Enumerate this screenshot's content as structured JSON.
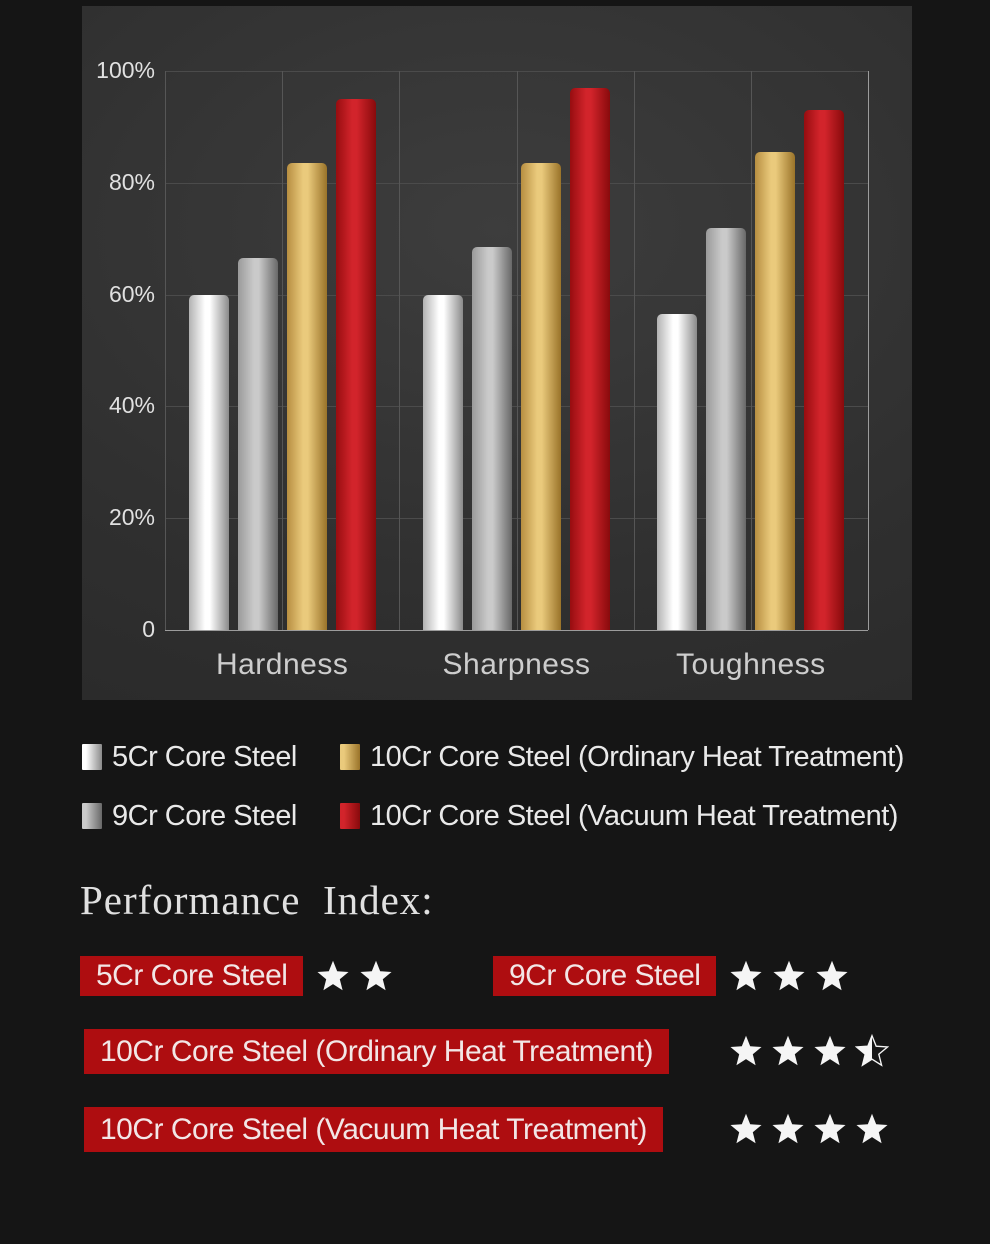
{
  "chart_data": {
    "type": "bar",
    "title": "",
    "xlabel": "",
    "ylabel": "",
    "categories": [
      "Hardness",
      "Sharpness",
      "Toughness"
    ],
    "series": [
      {
        "name": "5Cr Core Steel",
        "values": [
          60,
          60,
          56.5
        ],
        "color": {
          "left": "#b2b2b2",
          "mid": "#ffffff",
          "right": "#8a8a8a"
        }
      },
      {
        "name": "9Cr Core Steel",
        "values": [
          66.5,
          68.5,
          72
        ],
        "color": {
          "left": "#9a9a9a",
          "mid": "#cacaca",
          "right": "#686868"
        }
      },
      {
        "name": "10Cr Core Steel (Ordinary Heat Treatment)",
        "values": [
          83.5,
          83.5,
          85.5
        ],
        "color": {
          "left": "#b78e41",
          "mid": "#eaca7c",
          "right": "#9a7329"
        }
      },
      {
        "name": "10Cr Core Steel (Vacuum Heat Treatment)",
        "values": [
          95,
          97,
          93
        ],
        "color": {
          "left": "#970d10",
          "mid": "#d2242b",
          "right": "#880a0c"
        }
      }
    ],
    "y_ticks": [
      "0",
      "20%",
      "40%",
      "60%",
      "80%",
      "100%"
    ],
    "ylim": [
      0,
      100
    ],
    "grid": true,
    "legend_position": "bottom",
    "legend_order": [
      0,
      2,
      1,
      3
    ]
  },
  "performance": {
    "heading": "Performance  Index:",
    "badge_color": "#ae0d10",
    "star_color": "#f5f5f5",
    "rows": [
      {
        "label": "5Cr Core Steel",
        "rating": 2
      },
      {
        "label": "9Cr Core Steel",
        "rating": 3
      },
      {
        "label": "10Cr Core Steel (Ordinary Heat Treatment)",
        "rating": 3.5
      },
      {
        "label": "10Cr Core Steel (Vacuum Heat Treatment)",
        "rating": 4
      }
    ]
  }
}
